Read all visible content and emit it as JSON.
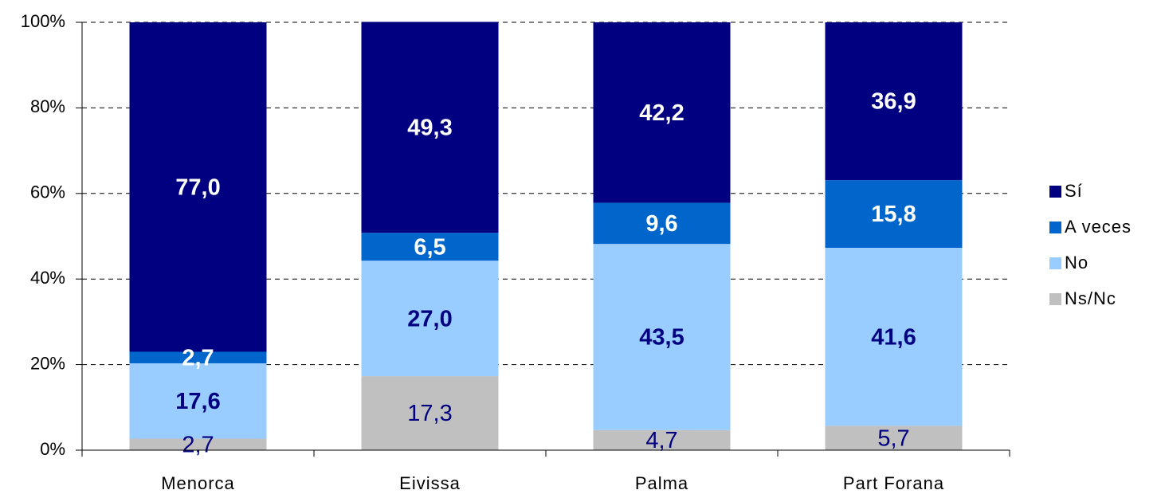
{
  "chart_data": {
    "type": "stacked_bar",
    "categories": [
      "Menorca",
      "Eivissa",
      "Palma",
      "Part Forana"
    ],
    "series": [
      {
        "name": "Ns/Nc",
        "color": "#c0c0c0",
        "label_color": "#000080",
        "values": [
          2.7,
          17.3,
          4.7,
          5.7
        ],
        "value_labels": [
          "2,7",
          "17,3",
          "4,7",
          "5,7"
        ]
      },
      {
        "name": "No",
        "color": "#99ccff",
        "label_color": "#000080",
        "values": [
          17.6,
          27.0,
          43.5,
          41.6
        ],
        "value_labels": [
          "17,6",
          "27,0",
          "43,5",
          "41,6"
        ]
      },
      {
        "name": "A veces",
        "color": "#0066cc",
        "label_color": "#ffffff",
        "values": [
          2.7,
          6.5,
          9.6,
          15.8
        ],
        "value_labels": [
          "2,7",
          "6,5",
          "9,6",
          "15,8"
        ]
      },
      {
        "name": "Sí",
        "color": "#000080",
        "label_color": "#ffffff",
        "values": [
          77.0,
          49.3,
          42.2,
          36.9
        ],
        "value_labels": [
          "77,0",
          "49,3",
          "42,2",
          "36,9"
        ]
      }
    ],
    "ylim": [
      0,
      100
    ],
    "yticks": [
      {
        "value": 0,
        "label": "0%"
      },
      {
        "value": 20,
        "label": "20%"
      },
      {
        "value": 40,
        "label": "40%"
      },
      {
        "value": 60,
        "label": "60%"
      },
      {
        "value": 80,
        "label": "80%"
      },
      {
        "value": 100,
        "label": "100%"
      }
    ],
    "grid": true,
    "legend": "right"
  }
}
